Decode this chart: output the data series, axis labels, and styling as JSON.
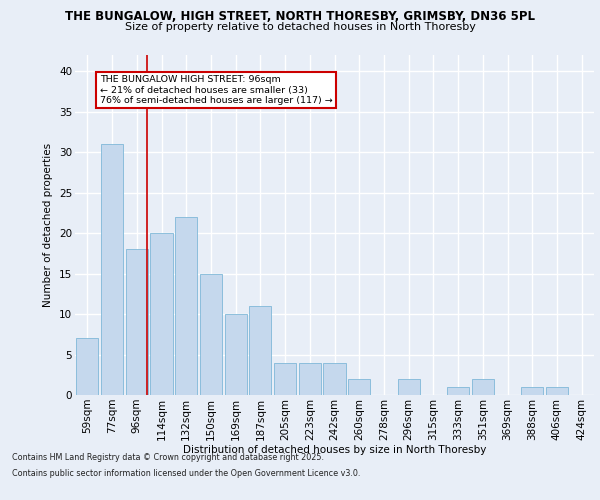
{
  "title_line1": "THE BUNGALOW, HIGH STREET, NORTH THORESBY, GRIMSBY, DN36 5PL",
  "title_line2": "Size of property relative to detached houses in North Thoresby",
  "xlabel": "Distribution of detached houses by size in North Thoresby",
  "ylabel": "Number of detached properties",
  "categories": [
    "59sqm",
    "77sqm",
    "96sqm",
    "114sqm",
    "132sqm",
    "150sqm",
    "169sqm",
    "187sqm",
    "205sqm",
    "223sqm",
    "242sqm",
    "260sqm",
    "278sqm",
    "296sqm",
    "315sqm",
    "333sqm",
    "351sqm",
    "369sqm",
    "388sqm",
    "406sqm",
    "424sqm"
  ],
  "values": [
    7,
    31,
    18,
    20,
    22,
    15,
    10,
    11,
    4,
    4,
    4,
    2,
    0,
    2,
    0,
    1,
    2,
    0,
    1,
    1,
    0
  ],
  "bar_color": "#c5d8ed",
  "bar_edge_color": "#7fb8d8",
  "vline_x": 2.425,
  "annotation_text": "THE BUNGALOW HIGH STREET: 96sqm\n← 21% of detached houses are smaller (33)\n76% of semi-detached houses are larger (117) →",
  "annotation_box_color": "#ffffff",
  "annotation_box_edge": "#cc0000",
  "vline_color": "#cc0000",
  "ylim": [
    0,
    42
  ],
  "yticks": [
    0,
    5,
    10,
    15,
    20,
    25,
    30,
    35,
    40
  ],
  "bg_color": "#e8eef7",
  "plot_bg_color": "#e8eef7",
  "grid_color": "#ffffff",
  "footer_line1": "Contains HM Land Registry data © Crown copyright and database right 2025.",
  "footer_line2": "Contains public sector information licensed under the Open Government Licence v3.0."
}
